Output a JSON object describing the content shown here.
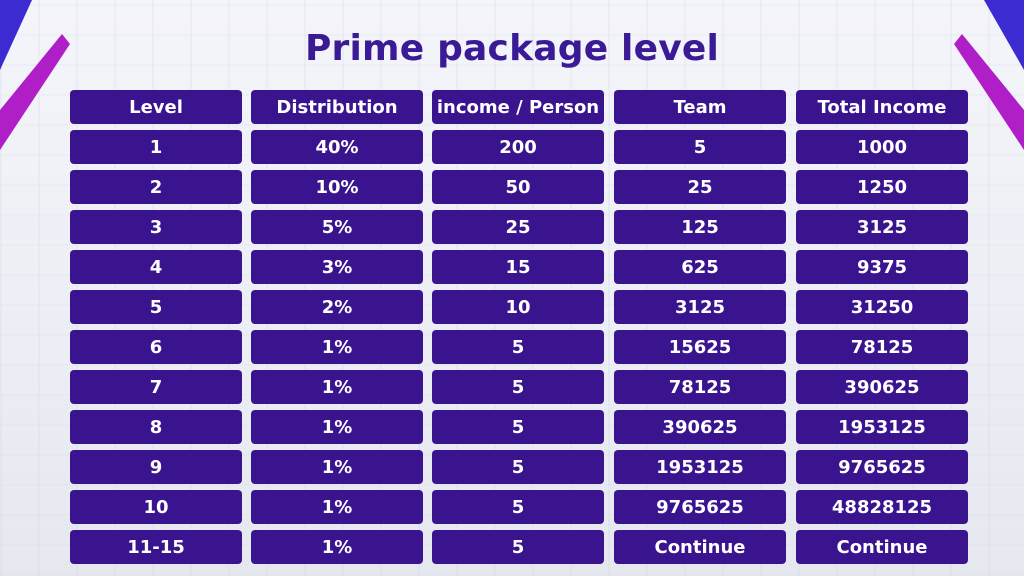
{
  "title": "Prime package level",
  "headers": [
    "Level",
    "Distribution",
    "income / Person",
    "Team",
    "Total Income"
  ],
  "rows": [
    [
      "1",
      "40%",
      "200",
      "5",
      "1000"
    ],
    [
      "2",
      "10%",
      "50",
      "25",
      "1250"
    ],
    [
      "3",
      "5%",
      "25",
      "125",
      "3125"
    ],
    [
      "4",
      "3%",
      "15",
      "625",
      "9375"
    ],
    [
      "5",
      "2%",
      "10",
      "3125",
      "31250"
    ],
    [
      "6",
      "1%",
      "5",
      "15625",
      "78125"
    ],
    [
      "7",
      "1%",
      "5",
      "78125",
      "390625"
    ],
    [
      "8",
      "1%",
      "5",
      "390625",
      "1953125"
    ],
    [
      "9",
      "1%",
      "5",
      "1953125",
      "9765625"
    ],
    [
      "10",
      "1%",
      "5",
      "9765625",
      "48828125"
    ],
    [
      "11-15",
      "1%",
      "5",
      "Continue",
      "Continue"
    ]
  ],
  "colors": {
    "title": "#3a1a95",
    "cell_bg": "#3a138f",
    "cell_text": "#ffffff",
    "accent_magenta": "#b01ec8",
    "accent_blue": "#3b2bd0"
  }
}
